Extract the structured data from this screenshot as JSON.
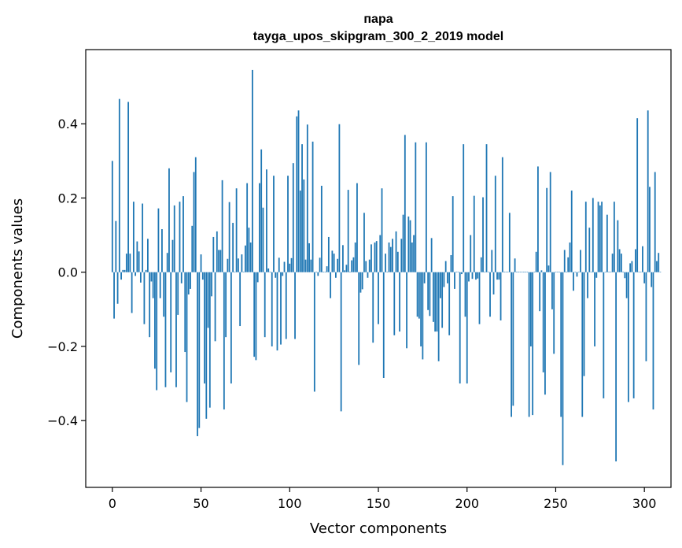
{
  "chart_data": {
    "type": "bar",
    "title": "пара",
    "subtitle": "tayga_upos_skipgram_300_2_2019 model",
    "xlabel": "Vector components",
    "ylabel": "Components values",
    "xlim": [
      -15,
      315
    ],
    "ylim": [
      -0.58,
      0.6
    ],
    "x_ticks": [
      0,
      50,
      100,
      150,
      200,
      250,
      300
    ],
    "x_tick_labels": [
      "0",
      "50",
      "100",
      "150",
      "200",
      "250",
      "300"
    ],
    "y_ticks": [
      -0.4,
      -0.2,
      0.0,
      0.2,
      0.4
    ],
    "y_tick_labels": [
      "−0.4",
      "−0.2",
      "0.0",
      "0.2",
      "0.4"
    ],
    "bar_color": "#1f77b4",
    "grid": false,
    "values": [
      0.3,
      -0.125,
      0.138,
      -0.085,
      0.467,
      -0.02,
      0.006,
      0.006,
      0.05,
      0.459,
      0.05,
      -0.11,
      0.19,
      -0.01,
      0.083,
      0.056,
      -0.028,
      0.185,
      -0.14,
      0.006,
      0.09,
      -0.175,
      -0.025,
      -0.07,
      -0.26,
      -0.318,
      0.172,
      -0.07,
      0.116,
      -0.12,
      -0.31,
      0.052,
      0.28,
      -0.27,
      0.087,
      0.18,
      -0.31,
      -0.115,
      0.19,
      -0.03,
      0.205,
      -0.215,
      -0.35,
      -0.06,
      -0.045,
      0.125,
      0.27,
      0.31,
      -0.442,
      -0.42,
      0.048,
      -0.02,
      -0.3,
      -0.395,
      -0.15,
      -0.365,
      -0.065,
      0.095,
      -0.186,
      0.11,
      0.06,
      0.06,
      0.248,
      -0.37,
      -0.175,
      0.036,
      0.189,
      -0.3,
      0.133,
      0.001,
      0.226,
      0.037,
      -0.145,
      0.048,
      0.0,
      0.072,
      0.24,
      0.12,
      0.08,
      0.545,
      -0.228,
      -0.237,
      -0.027,
      0.24,
      0.331,
      0.174,
      -0.175,
      0.277,
      0.01,
      0.0,
      -0.2,
      0.26,
      -0.015,
      -0.211,
      0.039,
      -0.195,
      -0.01,
      0.028,
      -0.18,
      0.26,
      0.023,
      0.038,
      0.294,
      -0.18,
      0.42,
      0.436,
      0.22,
      0.345,
      0.25,
      0.034,
      0.398,
      0.078,
      0.034,
      0.352,
      -0.322,
      0.0,
      -0.01,
      0.039,
      0.233,
      0.0,
      0.0,
      0.016,
      0.095,
      -0.07,
      0.058,
      0.05,
      -0.015,
      0.036,
      0.399,
      -0.375,
      0.073,
      0.005,
      0.02,
      0.222,
      0.0,
      0.032,
      0.04,
      0.08,
      0.24,
      -0.25,
      -0.055,
      -0.046,
      0.16,
      0.03,
      -0.015,
      0.034,
      0.075,
      -0.19,
      0.08,
      0.084,
      -0.14,
      0.1,
      0.226,
      -0.285,
      0.05,
      0.0,
      0.08,
      0.068,
      0.09,
      -0.17,
      0.11,
      0.055,
      -0.16,
      0.09,
      0.155,
      0.37,
      -0.205,
      0.15,
      0.14,
      0.08,
      0.1,
      0.35,
      -0.12,
      -0.125,
      -0.2,
      -0.235,
      -0.03,
      0.35,
      -0.102,
      -0.118,
      0.092,
      -0.134,
      -0.16,
      -0.16,
      -0.24,
      -0.07,
      -0.15,
      -0.04,
      0.03,
      -0.03,
      -0.17,
      0.046,
      0.205,
      -0.045,
      0.0,
      0.0,
      -0.3,
      -0.005,
      0.345,
      -0.12,
      -0.3,
      -0.025,
      0.1,
      -0.018,
      0.206,
      -0.02,
      -0.017,
      -0.14,
      0.04,
      0.202,
      0.0,
      0.345,
      0.0,
      -0.12,
      0.06,
      -0.06,
      0.26,
      -0.02,
      -0.02,
      -0.13,
      0.31,
      0.0,
      0.0,
      0.0,
      0.16,
      -0.39,
      -0.36,
      0.037,
      0.0,
      0.0,
      0.0,
      0.0,
      0.0,
      0.0,
      0.0,
      -0.39,
      -0.2,
      -0.385,
      0.0,
      0.055,
      0.285,
      -0.105,
      0.005,
      -0.27,
      -0.33,
      0.227,
      0.018,
      0.27,
      -0.1,
      -0.22,
      0.0,
      0.0,
      0.0,
      -0.39,
      -0.52,
      0.06,
      0.0,
      0.04,
      0.08,
      0.22,
      -0.05,
      0.0,
      -0.012,
      0.0,
      0.06,
      -0.39,
      -0.28,
      0.19,
      -0.07,
      0.12,
      0.0,
      0.2,
      -0.2,
      -0.015,
      0.19,
      0.18,
      0.19,
      -0.34,
      0.0,
      0.155,
      0.0,
      0.0,
      0.05,
      0.19,
      -0.51,
      0.14,
      0.062,
      0.05,
      0.0,
      -0.016,
      -0.07,
      -0.35,
      0.024,
      0.03,
      -0.34,
      0.062,
      0.415,
      0.0,
      0.0,
      0.07,
      -0.03,
      -0.24,
      0.436,
      0.23,
      -0.04,
      -0.37,
      0.27,
      0.03,
      0.052,
      0.0
    ]
  }
}
